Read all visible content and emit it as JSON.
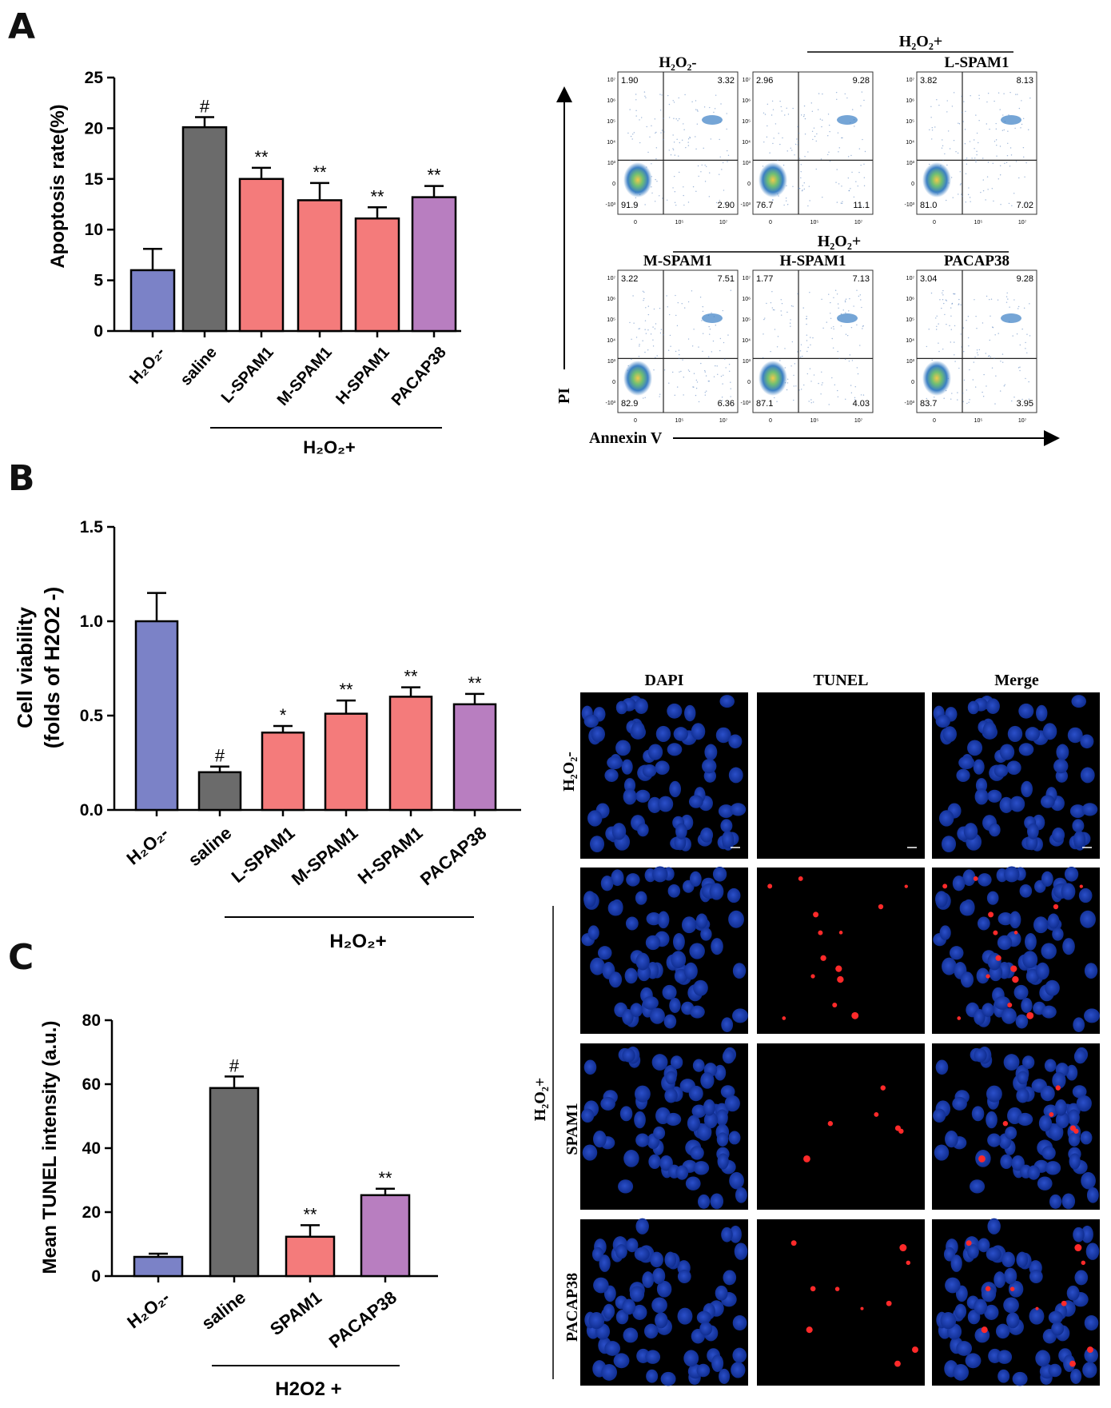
{
  "panels": {
    "a": "A",
    "b": "B",
    "c": "C"
  },
  "common": {
    "group_label": "H₂O₂+",
    "h2o2_minus": "H₂O₂-",
    "h2o2_plus_serif": "H₂O₂+"
  },
  "colors": {
    "control": "#7b82c7",
    "saline": "#6b6b6b",
    "spam1": "#f47b7b",
    "pacap": "#b87ec0"
  },
  "chart_data": [
    {
      "id": "A",
      "type": "bar",
      "ylabel": "Apoptosis rate(%)",
      "ylim": [
        0,
        25
      ],
      "yticks": [
        "0",
        "5",
        "10",
        "15",
        "20",
        "25"
      ],
      "categories": [
        "H2O2-",
        "saline",
        "L-SPAM1",
        "M-SPAM1",
        "H-SPAM1",
        "PACAP38"
      ],
      "values": [
        6.0,
        20.1,
        15.0,
        12.9,
        11.1,
        13.2
      ],
      "errors": [
        2.1,
        1.0,
        1.1,
        1.7,
        1.1,
        1.1
      ],
      "annotations": [
        "",
        "#",
        "**",
        "**",
        "**",
        "**"
      ],
      "colors": [
        "control",
        "saline",
        "spam1",
        "spam1",
        "spam1",
        "pacap"
      ],
      "group_label": "H2O2+"
    },
    {
      "id": "B",
      "type": "bar",
      "ylabel": "Cell viability",
      "ylabel2": "(folds of H2O2 -)",
      "ylim": [
        0,
        1.5
      ],
      "yticks": [
        "0.0",
        "0.5",
        "1.0",
        "1.5"
      ],
      "categories": [
        "H2O2-",
        "saline",
        "L-SPAM1",
        "M-SPAM1",
        "H-SPAM1",
        "PACAP38"
      ],
      "values": [
        1.0,
        0.2,
        0.41,
        0.51,
        0.6,
        0.56
      ],
      "errors": [
        0.15,
        0.03,
        0.035,
        0.07,
        0.05,
        0.055
      ],
      "annotations": [
        "",
        "#",
        "*",
        "**",
        "**",
        "**"
      ],
      "colors": [
        "control",
        "saline",
        "spam1",
        "spam1",
        "spam1",
        "pacap"
      ],
      "group_label": "H2O2+"
    },
    {
      "id": "C",
      "type": "bar",
      "ylabel": "Mean TUNEL intensity (a.u.)",
      "ylim": [
        0,
        80
      ],
      "yticks": [
        "0",
        "20",
        "40",
        "60",
        "80"
      ],
      "categories": [
        "H2O2-",
        "saline",
        "SPAM1",
        "PACAP38"
      ],
      "values": [
        6.0,
        58.8,
        12.3,
        25.3
      ],
      "errors": [
        1.0,
        3.6,
        3.6,
        2.0
      ],
      "annotations": [
        "",
        "#",
        "**",
        "**"
      ],
      "colors": [
        "control",
        "saline",
        "spam1",
        "pacap"
      ],
      "group_label": "H2O2 +"
    }
  ],
  "flow": {
    "y_axis_label": "PI",
    "x_axis_label": "Annexin V",
    "top_group_label": "H₂O₂+",
    "bottom_group_label": "H₂O₂+",
    "plots": [
      {
        "title": "H₂O₂-",
        "ul": "1.90",
        "ur": "3.32",
        "ll": "91.9",
        "lr": "2.90"
      },
      {
        "title": "",
        "ul": "2.96",
        "ur": "9.28",
        "ll": "76.7",
        "lr": "11.1"
      },
      {
        "title": "L-SPAM1",
        "ul": "3.82",
        "ur": "8.13",
        "ll": "81.0",
        "lr": "7.02"
      },
      {
        "title": "M-SPAM1",
        "ul": "3.22",
        "ur": "7.51",
        "ll": "82.9",
        "lr": "6.36"
      },
      {
        "title": "H-SPAM1",
        "ul": "1.77",
        "ur": "7.13",
        "ll": "87.1",
        "lr": "4.03"
      },
      {
        "title": "PACAP38",
        "ul": "3.04",
        "ur": "9.28",
        "ll": "83.7",
        "lr": "3.95"
      }
    ],
    "y_ticks": [
      "10⁷",
      "10⁶",
      "10⁵",
      "10⁴",
      "10³",
      "0",
      "-10³"
    ],
    "x_ticks": [
      "0",
      "10⁵",
      "10⁷"
    ]
  },
  "tunel": {
    "columns": [
      "DAPI",
      "TUNEL",
      "Merge"
    ],
    "row_label_control": "H₂O₂-",
    "side_label_group": "H₂O₂+",
    "side_label_spam": "SPAM1",
    "side_label_pacap": "PACAP38"
  }
}
